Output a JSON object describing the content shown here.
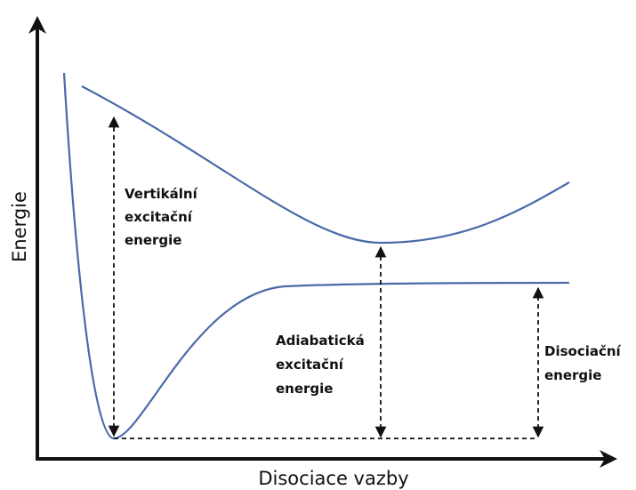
{
  "y_axis_label": "Energie",
  "x_axis_label": "Disociace vazby",
  "annotations": [
    {
      "lines": [
        "Vertikální",
        "excitační",
        "energie"
      ]
    },
    {
      "lines": [
        "Adiabatická",
        "excitační",
        "energie"
      ]
    },
    {
      "lines": [
        "Disociační",
        "energie"
      ]
    }
  ]
}
